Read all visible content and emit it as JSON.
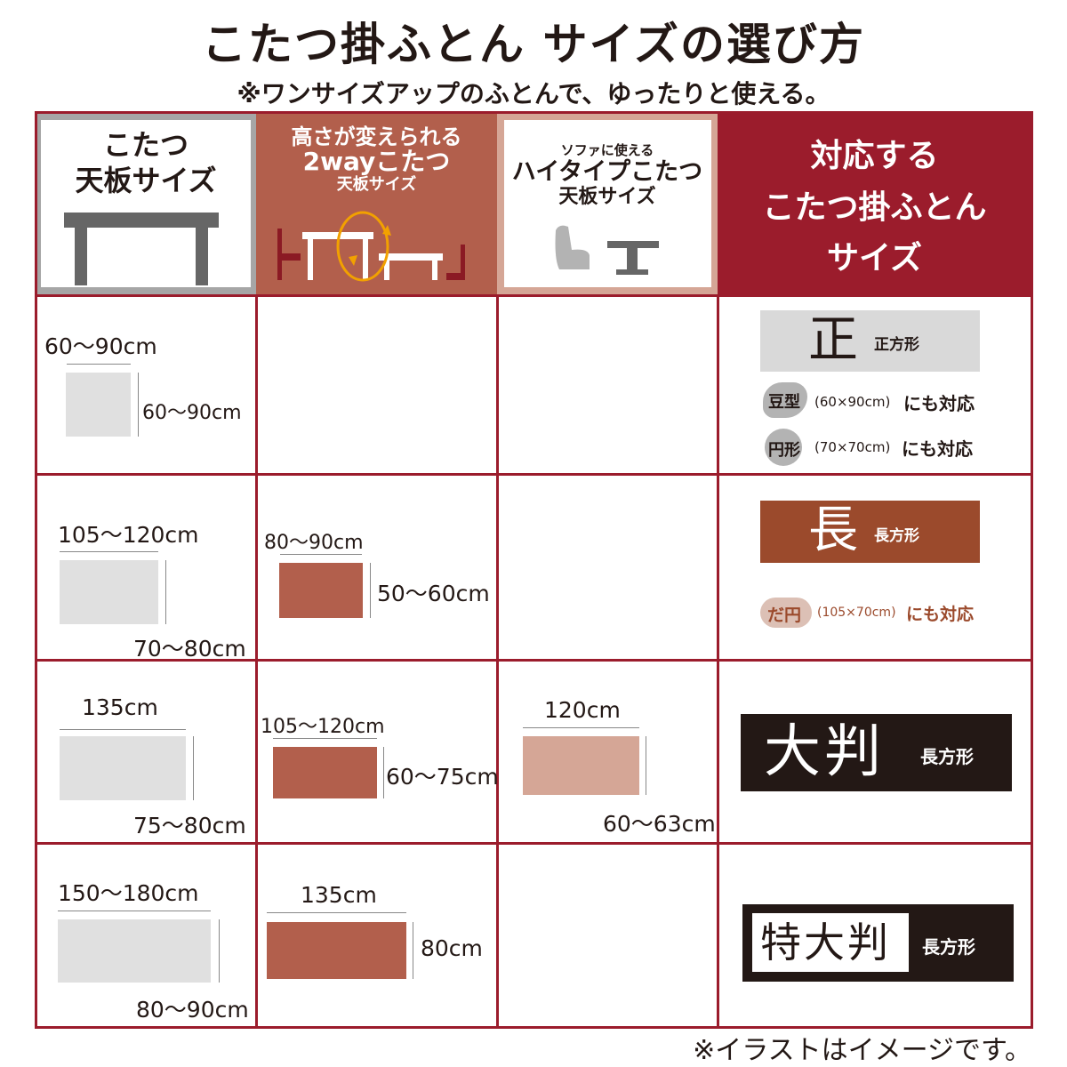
{
  "title": "こたつ掛ふとん サイズの選び方",
  "subtitle": "※ワンサイズアップのふとんで、ゆったりと使える。",
  "footnote": "※イラストはイメージです。",
  "colors": {
    "border": "#9b1c2c",
    "standard": "#e0e0e0",
    "twoway": "#b25f4c",
    "hightype": "#d5a696",
    "square": "#d9d9d9",
    "rect": "#9b4a2c",
    "large": "#231815"
  },
  "headers": {
    "standard": {
      "line1": "こたつ",
      "line2": "天板サイズ",
      "icon": "table-icon"
    },
    "twoway": {
      "line1": "高さが変えられる",
      "line2": "2wayこたつ",
      "line3": "天板サイズ",
      "icon": "height-adjustable-table-icon"
    },
    "hightype": {
      "line1": "ソファに使える",
      "line2": "ハイタイプこたつ",
      "line3": "天板サイズ",
      "icon": "sofa-table-icon"
    },
    "futon": {
      "line1": "対応する",
      "line2": "こたつ掛ふとん",
      "line3": "サイズ"
    }
  },
  "rows": [
    {
      "standard": {
        "w": "60〜90cm",
        "d": "60〜90cm"
      },
      "futon": {
        "kanji": "正",
        "shape": "正方形",
        "extras": [
          {
            "badge": "豆型",
            "size": "(60×90cm)",
            "note": "にも対応"
          },
          {
            "badge": "円形",
            "size": "(70×70cm)",
            "note": "にも対応"
          }
        ]
      }
    },
    {
      "standard": {
        "w": "105〜120cm",
        "d": "70〜80cm"
      },
      "twoway": {
        "w": "80〜90cm",
        "d": "50〜60cm"
      },
      "futon": {
        "kanji": "長",
        "shape": "長方形",
        "extras": [
          {
            "badge": "だ円",
            "size": "(105×70cm)",
            "note": "にも対応"
          }
        ]
      }
    },
    {
      "standard": {
        "w": "135cm",
        "d": "75〜80cm"
      },
      "twoway": {
        "w": "105〜120cm",
        "d": "60〜75cm"
      },
      "hightype": {
        "w": "120cm",
        "d": "60〜63cm"
      },
      "futon": {
        "kanji": "大判",
        "shape": "長方形"
      }
    },
    {
      "standard": {
        "w": "150〜180cm",
        "d": "80〜90cm"
      },
      "twoway": {
        "w": "135cm",
        "d": "80cm"
      },
      "futon": {
        "kanji": "特大判",
        "shape": "長方形"
      }
    }
  ]
}
